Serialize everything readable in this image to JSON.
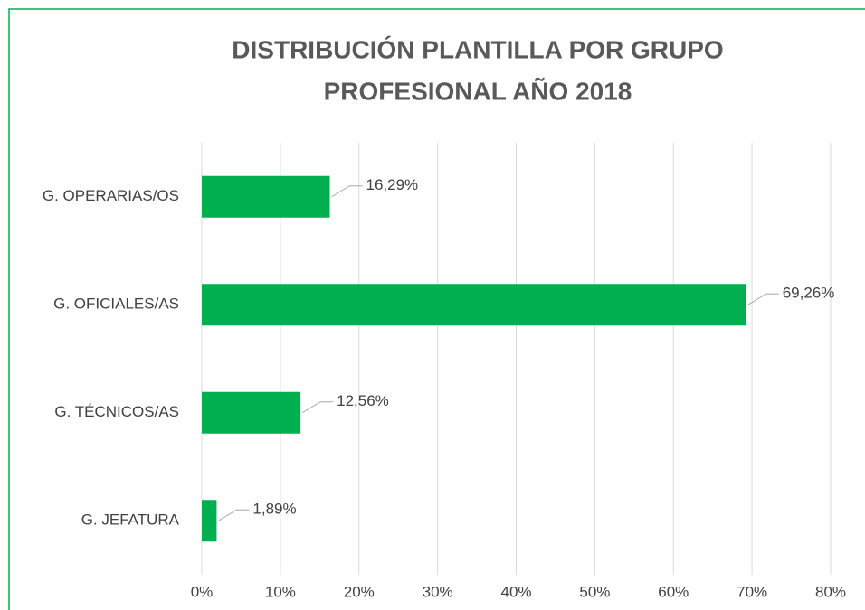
{
  "chart_data": {
    "type": "bar",
    "orientation": "horizontal",
    "title": [
      "DISTRIBUCIÓN PLANTILLA POR GRUPO",
      "PROFESIONAL AÑO 2018"
    ],
    "categories": [
      "G. OPERARIAS/OS",
      "G. OFICIALES/AS",
      "G. TÉCNICOS/AS",
      "G. JEFATURA"
    ],
    "values": [
      16.29,
      69.26,
      12.56,
      1.89
    ],
    "value_labels": [
      "16,29%",
      "69,26%",
      "12,56%",
      "1,89%"
    ],
    "color": "#00b050",
    "xlim": [
      0,
      80
    ],
    "xticks": [
      {
        "value": 0,
        "label": "0%"
      },
      {
        "value": 10,
        "label": "10%"
      },
      {
        "value": 20,
        "label": "20%"
      },
      {
        "value": 30,
        "label": "30%"
      },
      {
        "value": 40,
        "label": "40%"
      },
      {
        "value": 50,
        "label": "50%"
      },
      {
        "value": 60,
        "label": "60%"
      },
      {
        "value": 70,
        "label": "70%"
      },
      {
        "value": 80,
        "label": "80%"
      }
    ],
    "grid": true
  }
}
